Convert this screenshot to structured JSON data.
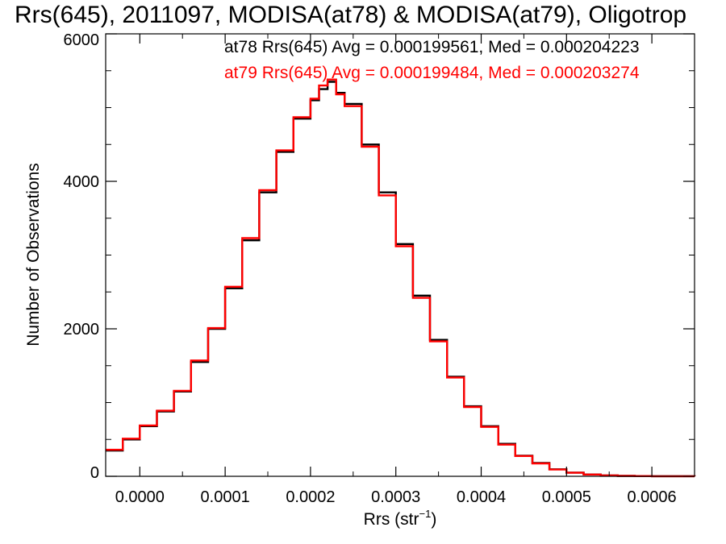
{
  "chart_data": {
    "type": "line",
    "title": "Rrs(645), 2011097, MODISA(at78) & MODISA(at79), Oligotrop",
    "xlabel": "Rrs (str",
    "xlabel_superscript": "−1",
    "xlabel_close": ")",
    "ylabel": "Number of Observations",
    "xlim": [
      -4e-05,
      0.00065
    ],
    "ylim": [
      0,
      6000
    ],
    "x_ticks": [
      0.0,
      0.0001,
      0.0002,
      0.0003,
      0.0004,
      0.0005,
      0.0006
    ],
    "x_tick_labels": [
      "0.0000",
      "0.0001",
      "0.0002",
      "0.0003",
      "0.0004",
      "0.0005",
      "0.0006"
    ],
    "y_ticks": [
      0,
      2000,
      4000,
      6000
    ],
    "y_tick_labels": [
      "0",
      "2000",
      "4000",
      "6000"
    ],
    "grid": false,
    "legend_position": "top-right",
    "x": [
      -4e-05,
      -2e-05,
      0.0,
      2e-05,
      4e-05,
      6e-05,
      8e-05,
      0.0001,
      0.00012,
      0.00014,
      0.00016,
      0.00018,
      0.0002,
      0.00021,
      0.00022,
      0.00023,
      0.00024,
      0.00026,
      0.00028,
      0.0003,
      0.00032,
      0.00034,
      0.00036,
      0.00038,
      0.0004,
      0.00042,
      0.00044,
      0.00046,
      0.00048,
      0.0005,
      0.00052,
      0.00054,
      0.00056,
      0.00058,
      0.0006,
      0.00065
    ],
    "series": [
      {
        "name": "at78",
        "color": "#000000",
        "annotation": "at78 Rrs(645) Avg = 0.000199561, Med = 0.000204223",
        "values": [
          350,
          500,
          680,
          880,
          1150,
          1550,
          2000,
          2550,
          3200,
          3850,
          4400,
          4850,
          5100,
          5250,
          5350,
          5200,
          5050,
          4500,
          3850,
          3150,
          2450,
          1850,
          1350,
          950,
          680,
          440,
          280,
          180,
          95,
          50,
          25,
          12,
          6,
          3,
          1,
          0
        ]
      },
      {
        "name": "at79",
        "color": "#ff0000",
        "annotation": "at79 Rrs(645) Avg = 0.000199484, Med = 0.000203274",
        "values": [
          360,
          510,
          690,
          890,
          1160,
          1570,
          2010,
          2570,
          3230,
          3880,
          4420,
          4870,
          5120,
          5300,
          5380,
          5180,
          5020,
          4470,
          3810,
          3120,
          2420,
          1830,
          1340,
          940,
          670,
          430,
          275,
          175,
          92,
          48,
          24,
          11,
          6,
          3,
          1,
          0
        ]
      }
    ]
  }
}
